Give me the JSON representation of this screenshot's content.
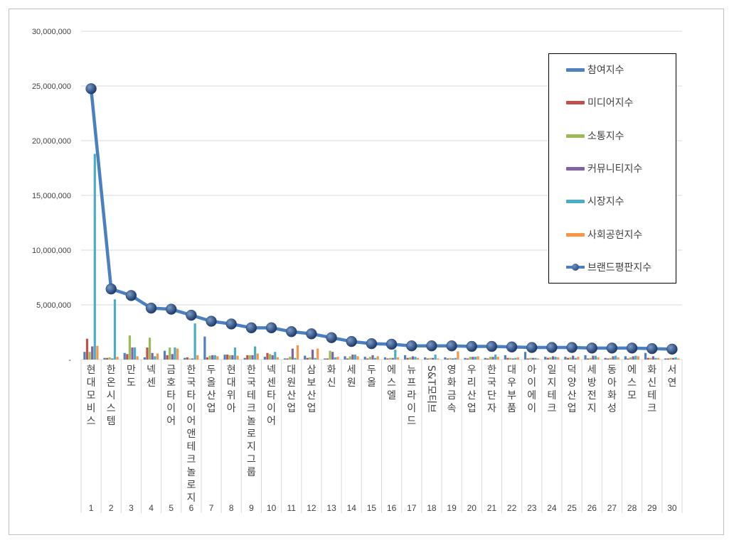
{
  "chart_data": {
    "type": "bar",
    "categories": [
      "현대모비스",
      "한온시스템",
      "만도",
      "넥센",
      "금호타이어",
      "한국타이어앤테크놀로지",
      "두올산업",
      "현대위아",
      "한국테크놀로지그룹",
      "넥센타이어",
      "대원산업",
      "삼보산업",
      "화신",
      "세원",
      "두올",
      "에스엘",
      "뉴프라이드",
      "S&T모티브",
      "영화금속",
      "우리산업",
      "한국단자",
      "대우부품",
      "아이에이",
      "일지테크",
      "덕양산업",
      "세방전지",
      "동아화성",
      "에스모",
      "화신테크",
      "서연"
    ],
    "ranks": [
      "1",
      "2",
      "3",
      "4",
      "5",
      "6",
      "7",
      "8",
      "9",
      "10",
      "11",
      "12",
      "13",
      "14",
      "15",
      "16",
      "17",
      "18",
      "19",
      "20",
      "21",
      "22",
      "23",
      "24",
      "25",
      "26",
      "27",
      "28",
      "29",
      "30"
    ],
    "series": [
      {
        "name": "참여지수",
        "color": "#4f81bd",
        "values": [
          700000,
          150000,
          600000,
          200000,
          800000,
          150000,
          2100000,
          450000,
          150000,
          250000,
          100000,
          350000,
          100000,
          300000,
          250000,
          200000,
          400000,
          200000,
          200000,
          150000,
          150000,
          400000,
          700000,
          250000,
          250000,
          400000,
          150000,
          300000,
          600000,
          100000
        ]
      },
      {
        "name": "미디어지수",
        "color": "#c0504d",
        "values": [
          1900000,
          150000,
          500000,
          1100000,
          400000,
          200000,
          200000,
          450000,
          400000,
          600000,
          100000,
          150000,
          100000,
          100000,
          100000,
          100000,
          150000,
          100000,
          100000,
          100000,
          100000,
          150000,
          100000,
          150000,
          150000,
          100000,
          100000,
          100000,
          150000,
          100000
        ]
      },
      {
        "name": "소통지수",
        "color": "#9bbb59",
        "values": [
          700000,
          200000,
          2200000,
          2000000,
          1100000,
          100000,
          350000,
          400000,
          400000,
          500000,
          250000,
          200000,
          800000,
          300000,
          250000,
          150000,
          200000,
          150000,
          150000,
          250000,
          250000,
          150000,
          150000,
          200000,
          200000,
          150000,
          150000,
          200000,
          150000,
          150000
        ]
      },
      {
        "name": "커뮤니티지수",
        "color": "#8064a2",
        "values": [
          1200000,
          100000,
          1100000,
          600000,
          500000,
          100000,
          400000,
          400000,
          400000,
          400000,
          1000000,
          900000,
          700000,
          450000,
          400000,
          150000,
          300000,
          150000,
          100000,
          250000,
          250000,
          100000,
          150000,
          300000,
          350000,
          350000,
          300000,
          300000,
          300000,
          150000
        ]
      },
      {
        "name": "시장지수",
        "color": "#4bacc6",
        "values": [
          18800000,
          5500000,
          1100000,
          300000,
          1100000,
          3300000,
          400000,
          1100000,
          1200000,
          700000,
          150000,
          150000,
          200000,
          450000,
          150000,
          900000,
          250000,
          450000,
          150000,
          250000,
          450000,
          150000,
          150000,
          250000,
          150000,
          350000,
          350000,
          350000,
          150000,
          200000
        ]
      },
      {
        "name": "사회공헌지수",
        "color": "#f79646",
        "values": [
          1250000,
          250000,
          300000,
          550000,
          1000000,
          400000,
          300000,
          350000,
          550000,
          200000,
          1300000,
          1000000,
          250000,
          300000,
          300000,
          200000,
          150000,
          100000,
          750000,
          300000,
          250000,
          200000,
          100000,
          200000,
          250000,
          200000,
          200000,
          300000,
          150000,
          100000
        ]
      },
      {
        "name": "브랜드평판지수",
        "color": "#4a7fc0",
        "type": "line",
        "values": [
          24750000,
          6450000,
          5850000,
          4700000,
          4600000,
          4050000,
          3500000,
          3250000,
          2900000,
          2900000,
          2550000,
          2350000,
          2000000,
          1650000,
          1450000,
          1400000,
          1250000,
          1250000,
          1250000,
          1200000,
          1200000,
          1150000,
          1100000,
          1100000,
          1100000,
          1050000,
          1050000,
          1050000,
          1000000,
          950000
        ]
      }
    ],
    "yticks": [
      "30,000,000",
      "25,000,000",
      "20,000,000",
      "15,000,000",
      "10,000,000",
      "5,000,000",
      "-"
    ],
    "ylim": [
      0,
      30000000
    ],
    "grid": true,
    "legend_position": "right"
  },
  "legend": {
    "items": [
      {
        "label": "참여지수",
        "color": "#4f81bd"
      },
      {
        "label": "미디어지수",
        "color": "#c0504d"
      },
      {
        "label": "소통지수",
        "color": "#9bbb59"
      },
      {
        "label": "커뮤니티지수",
        "color": "#8064a2"
      },
      {
        "label": "시장지수",
        "color": "#4bacc6"
      },
      {
        "label": "사회공헌지수",
        "color": "#f79646"
      },
      {
        "label": "브랜드평판지수",
        "color": "#4a7fc0"
      }
    ]
  }
}
